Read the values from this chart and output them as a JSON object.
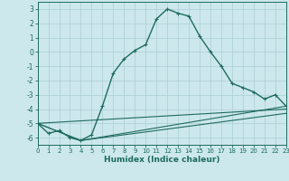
{
  "title": "",
  "xlabel": "Humidex (Indice chaleur)",
  "ylabel": "",
  "background_color": "#cce8ec",
  "grid_color": "#aacdd4",
  "line_color": "#1e6b5e",
  "xlim": [
    0,
    23
  ],
  "ylim": [
    -6.5,
    3.5
  ],
  "yticks": [
    3,
    2,
    1,
    0,
    -1,
    -2,
    -3,
    -4,
    -5,
    -6
  ],
  "xticks": [
    0,
    1,
    2,
    3,
    4,
    5,
    6,
    7,
    8,
    9,
    10,
    11,
    12,
    13,
    14,
    15,
    16,
    17,
    18,
    19,
    20,
    21,
    22,
    23
  ],
  "main_series": {
    "x": [
      0,
      1,
      2,
      3,
      4,
      5,
      6,
      7,
      8,
      9,
      10,
      11,
      12,
      13,
      14,
      15,
      16,
      17,
      18,
      19,
      20,
      21,
      22,
      23
    ],
    "y": [
      -5.0,
      -5.7,
      -5.5,
      -6.0,
      -6.2,
      -5.8,
      -3.8,
      -1.5,
      -0.5,
      0.1,
      0.5,
      2.3,
      3.0,
      2.7,
      2.5,
      1.1,
      0.0,
      -1.0,
      -2.2,
      -2.5,
      -2.8,
      -3.3,
      -3.0,
      -3.8
    ]
  },
  "ref_lines": [
    {
      "x": [
        0,
        4,
        23
      ],
      "y": [
        -5.0,
        -6.2,
        -4.3
      ]
    },
    {
      "x": [
        0,
        4,
        23
      ],
      "y": [
        -5.0,
        -6.2,
        -3.8
      ]
    },
    {
      "x": [
        0,
        23
      ],
      "y": [
        -5.0,
        -4.0
      ]
    }
  ],
  "main_linewidth": 1.0,
  "ref_linewidth": 0.8,
  "markersize": 3.5,
  "xlabel_fontsize": 6.5,
  "tick_fontsize": 5.0
}
